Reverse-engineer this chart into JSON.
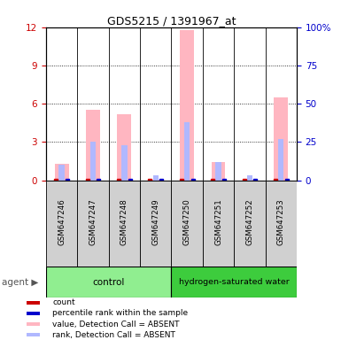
{
  "title": "GDS5215 / 1391967_at",
  "samples": [
    "GSM647246",
    "GSM647247",
    "GSM647248",
    "GSM647249",
    "GSM647250",
    "GSM647251",
    "GSM647252",
    "GSM647253"
  ],
  "ylim_left": [
    0,
    12
  ],
  "ylim_right": [
    0,
    100
  ],
  "yticks_left": [
    0,
    3,
    6,
    9,
    12
  ],
  "yticks_right": [
    0,
    25,
    50,
    75,
    100
  ],
  "ytick_labels_right": [
    "0",
    "25",
    "50",
    "75",
    "100%"
  ],
  "value_absent": [
    1.3,
    5.5,
    5.2,
    0.05,
    11.8,
    1.4,
    0.05,
    6.5
  ],
  "rank_absent_pct": [
    10,
    25,
    23,
    3,
    38,
    12,
    3,
    27
  ],
  "color_count": "#cc0000",
  "color_pct_rank": "#0000cc",
  "color_value_absent": "#ffb6c1",
  "color_rank_absent": "#b0b8ff",
  "ctrl_color": "#90EE90",
  "hydro_color": "#3dcc3d",
  "legend_items": [
    {
      "label": "count",
      "color": "#cc0000"
    },
    {
      "label": "percentile rank within the sample",
      "color": "#0000cc"
    },
    {
      "label": "value, Detection Call = ABSENT",
      "color": "#ffb6c1"
    },
    {
      "label": "rank, Detection Call = ABSENT",
      "color": "#b0b8ff"
    }
  ]
}
